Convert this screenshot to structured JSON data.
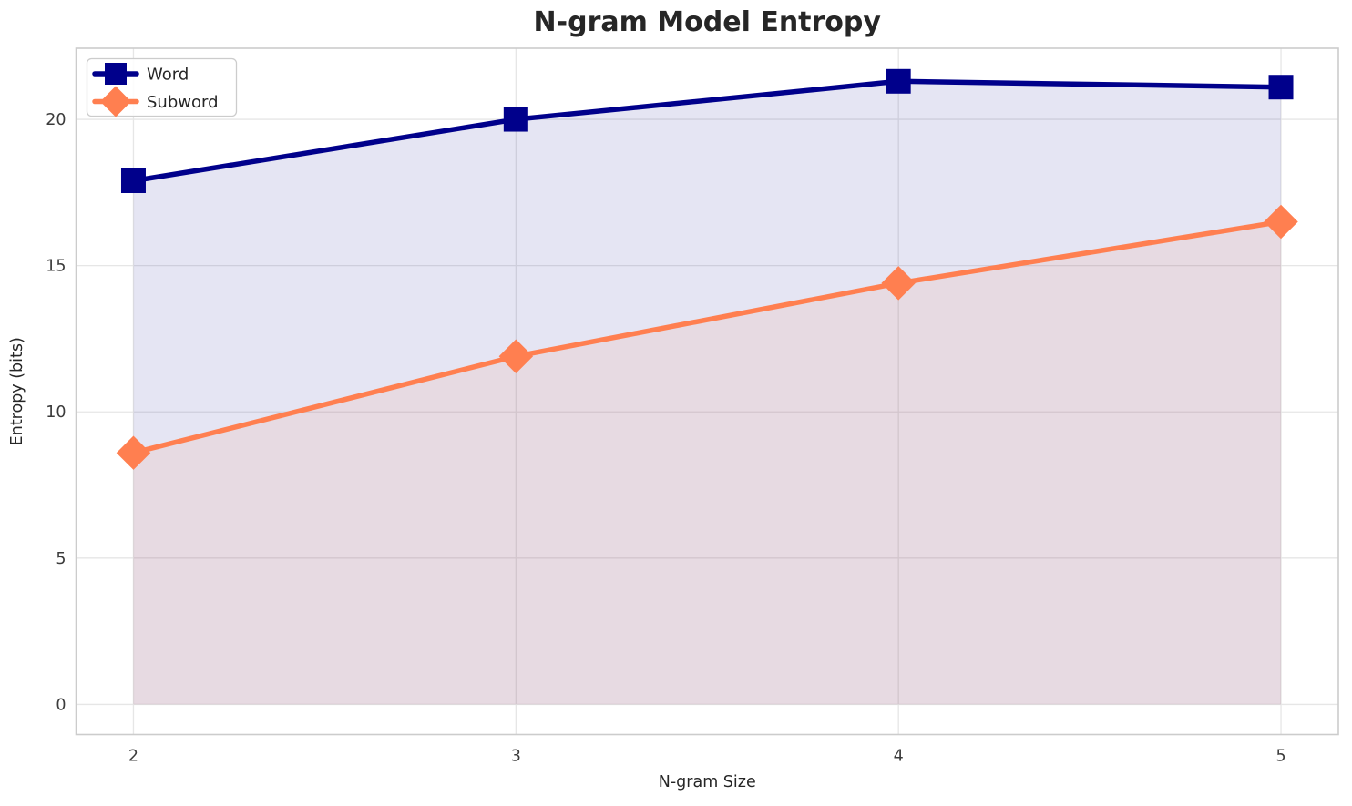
{
  "figure": {
    "background": "#ffffff"
  },
  "chart_data": {
    "type": "line",
    "title": "N-gram Model Entropy",
    "xlabel": "N-gram Size",
    "ylabel": "Entropy (bits)",
    "x": [
      2,
      3,
      4,
      5
    ],
    "x_tick_labels": [
      "2",
      "3",
      "4",
      "5"
    ],
    "y_tick_values": [
      0,
      5,
      10,
      15,
      20
    ],
    "y_tick_labels": [
      "0",
      "5",
      "10",
      "15",
      "20"
    ],
    "xlim": [
      1.85,
      5.15
    ],
    "ylim": [
      -1.03,
      22.43
    ],
    "grid": true,
    "legend_position": "upper-left",
    "area_fill_baseline": 0,
    "series": [
      {
        "name": "Word",
        "values": [
          17.9,
          20.0,
          21.3,
          21.1
        ],
        "color": "#00008B",
        "marker": "square",
        "area_fill": true,
        "fill_opacity": 0.1
      },
      {
        "name": "Subword",
        "values": [
          8.6,
          11.9,
          14.4,
          16.5
        ],
        "color": "#FF7F50",
        "marker": "diamond",
        "area_fill": true,
        "fill_opacity": 0.1
      }
    ]
  },
  "style_colors": {
    "title": "#262626",
    "tick_label": "#3b3b3b",
    "axis_label": "#262626",
    "grid": "#e6e6e6",
    "spine": "#cccccc",
    "legend_border": "#cccccc",
    "legend_background": "rgba(255,255,255,0.85)"
  }
}
